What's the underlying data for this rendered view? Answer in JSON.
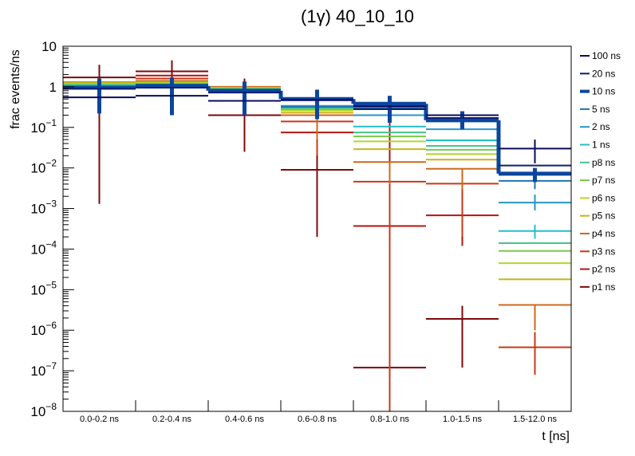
{
  "chart_data": {
    "type": "line",
    "subtype": "step-histogram-with-errorbars",
    "title": "(1γ) 40_10_10",
    "xlabel": "t [ns]",
    "ylabel": "frac events/ns",
    "yscale": "log",
    "ylim": [
      1e-08,
      10
    ],
    "ytick_labels": [
      {
        "base": "10",
        "exp": ""
      },
      {
        "base": "1",
        "exp": ""
      },
      {
        "base": "10",
        "exp": "−1"
      },
      {
        "base": "10",
        "exp": "−2"
      },
      {
        "base": "10",
        "exp": "−3"
      },
      {
        "base": "10",
        "exp": "−4"
      },
      {
        "base": "10",
        "exp": "−5"
      },
      {
        "base": "10",
        "exp": "−6"
      },
      {
        "base": "10",
        "exp": "−7"
      },
      {
        "base": "10",
        "exp": "−8"
      }
    ],
    "categories": [
      "0.0-0.2 ns",
      "0.2-0.4 ns",
      "0.4-0.6 ns",
      "0.6-0.8 ns",
      "0.8-1.0 ns",
      "1.0-1.5 ns",
      "1.5-12.0 ns"
    ],
    "legend_position": "right",
    "grid": false,
    "series": [
      {
        "name": "100 ns",
        "color": "#0a0a5e",
        "values": [
          0.55,
          0.6,
          0.45,
          0.48,
          0.33,
          0.2,
          0.03
        ],
        "err_lo": [
          null,
          null,
          null,
          null,
          null,
          null,
          0.013
        ],
        "err_hi": [
          null,
          null,
          null,
          null,
          null,
          null,
          0.05
        ]
      },
      {
        "name": "20 ns",
        "color": "#0d1e6e",
        "values": [
          0.9,
          0.95,
          0.72,
          0.47,
          0.28,
          0.17,
          0.0115
        ],
        "err_lo": [
          null,
          null,
          null,
          null,
          null,
          null,
          null
        ],
        "err_hi": [
          null,
          null,
          null,
          null,
          null,
          null,
          null
        ]
      },
      {
        "name": "10 ns",
        "color": "#0b469e",
        "thick": true,
        "values": [
          0.95,
          1.05,
          0.8,
          0.5,
          0.38,
          0.15,
          0.0072
        ],
        "err_lo": [
          0.22,
          0.2,
          0.2,
          0.16,
          0.13,
          0.09,
          0.0045
        ],
        "err_hi": [
          1.6,
          1.7,
          1.35,
          0.85,
          0.6,
          0.25,
          0.01
        ]
      },
      {
        "name": "5 ns",
        "color": "#1f74b4",
        "values": [
          1.0,
          1.0,
          0.75,
          0.32,
          0.3,
          0.16,
          0.0048
        ],
        "err_lo": [
          null,
          null,
          null,
          null,
          null,
          null,
          0.003
        ],
        "err_hi": [
          null,
          null,
          null,
          null,
          null,
          null,
          0.008
        ]
      },
      {
        "name": "2 ns",
        "color": "#2596c8",
        "values": [
          1.0,
          1.0,
          0.8,
          0.34,
          0.2,
          0.09,
          0.0014
        ],
        "err_lo": [
          null,
          null,
          null,
          null,
          null,
          null,
          0.0009
        ],
        "err_hi": [
          null,
          null,
          null,
          null,
          null,
          null,
          0.0022
        ]
      },
      {
        "name": "1 ns",
        "color": "#25bdc8",
        "values": [
          1.05,
          1.1,
          0.85,
          0.33,
          0.105,
          0.048,
          0.00028
        ],
        "err_lo": [
          null,
          null,
          null,
          null,
          null,
          null,
          0.00018
        ],
        "err_hi": [
          null,
          null,
          null,
          null,
          null,
          null,
          0.0004
        ]
      },
      {
        "name": "p8 ns",
        "color": "#45c48a",
        "values": [
          1.1,
          1.15,
          0.88,
          0.3,
          0.075,
          0.035,
          0.00014
        ],
        "err_lo": [
          null,
          null,
          null,
          null,
          null,
          null,
          null
        ],
        "err_hi": [
          null,
          null,
          null,
          null,
          null,
          null,
          null
        ]
      },
      {
        "name": "p7 ns",
        "color": "#7ac84f",
        "values": [
          1.15,
          1.2,
          0.9,
          0.28,
          0.06,
          0.028,
          9e-05
        ],
        "err_lo": [
          null,
          null,
          null,
          null,
          null,
          null,
          null
        ],
        "err_hi": [
          null,
          null,
          null,
          null,
          null,
          null,
          null
        ]
      },
      {
        "name": "p6 ns",
        "color": "#b0d82a",
        "values": [
          1.2,
          1.25,
          0.92,
          0.26,
          0.045,
          0.022,
          4.5e-05
        ],
        "err_lo": [
          null,
          null,
          null,
          null,
          null,
          null,
          null
        ],
        "err_hi": [
          null,
          null,
          null,
          null,
          null,
          null,
          null
        ]
      },
      {
        "name": "p5 ns",
        "color": "#c8b418",
        "values": [
          1.25,
          1.3,
          0.95,
          0.23,
          0.029,
          0.016,
          1.8e-05
        ],
        "err_lo": [
          null,
          null,
          null,
          null,
          null,
          null,
          null
        ],
        "err_hi": [
          null,
          null,
          null,
          null,
          null,
          null,
          null
        ]
      },
      {
        "name": "p4 ns",
        "color": "#cc6a18",
        "values": [
          1.3,
          1.4,
          1.0,
          0.2,
          0.014,
          0.0095,
          4.2e-06
        ],
        "err_lo": [
          null,
          null,
          null,
          0.05,
          0.004,
          0.003,
          1e-06
        ],
        "err_hi": [
          null,
          null,
          1.2,
          null,
          null,
          null,
          null
        ]
      },
      {
        "name": "p3 ns",
        "color": "#c8381a",
        "values": [
          1.2,
          1.6,
          0.9,
          0.14,
          0.0046,
          0.0041,
          3.8e-07
        ],
        "err_lo": [
          null,
          null,
          null,
          0.02,
          1e-08,
          0.0002,
          8e-08
        ],
        "err_hi": [
          null,
          null,
          null,
          null,
          null,
          null,
          9e-07
        ]
      },
      {
        "name": "p2 ns",
        "color": "#b21412",
        "values": [
          1.1,
          1.9,
          0.75,
          0.075,
          0.00037,
          0.00068,
          0.0
        ],
        "err_lo": [
          null,
          null,
          null,
          null,
          1e-08,
          0.00012,
          null
        ],
        "err_hi": [
          null,
          null,
          null,
          null,
          0.15,
          0.006,
          null
        ]
      },
      {
        "name": "p1 ns",
        "color": "#7d0a0a",
        "values": [
          1.7,
          2.4,
          0.2,
          0.009,
          1.2e-07,
          1.9e-06,
          0.0
        ],
        "err_lo": [
          0.0013,
          0.6,
          0.025,
          0.0002,
          1e-08,
          1.2e-07,
          null
        ],
        "err_hi": [
          3.5,
          4.5,
          1.6,
          0.18,
          1e-06,
          4e-06,
          null
        ]
      }
    ]
  }
}
